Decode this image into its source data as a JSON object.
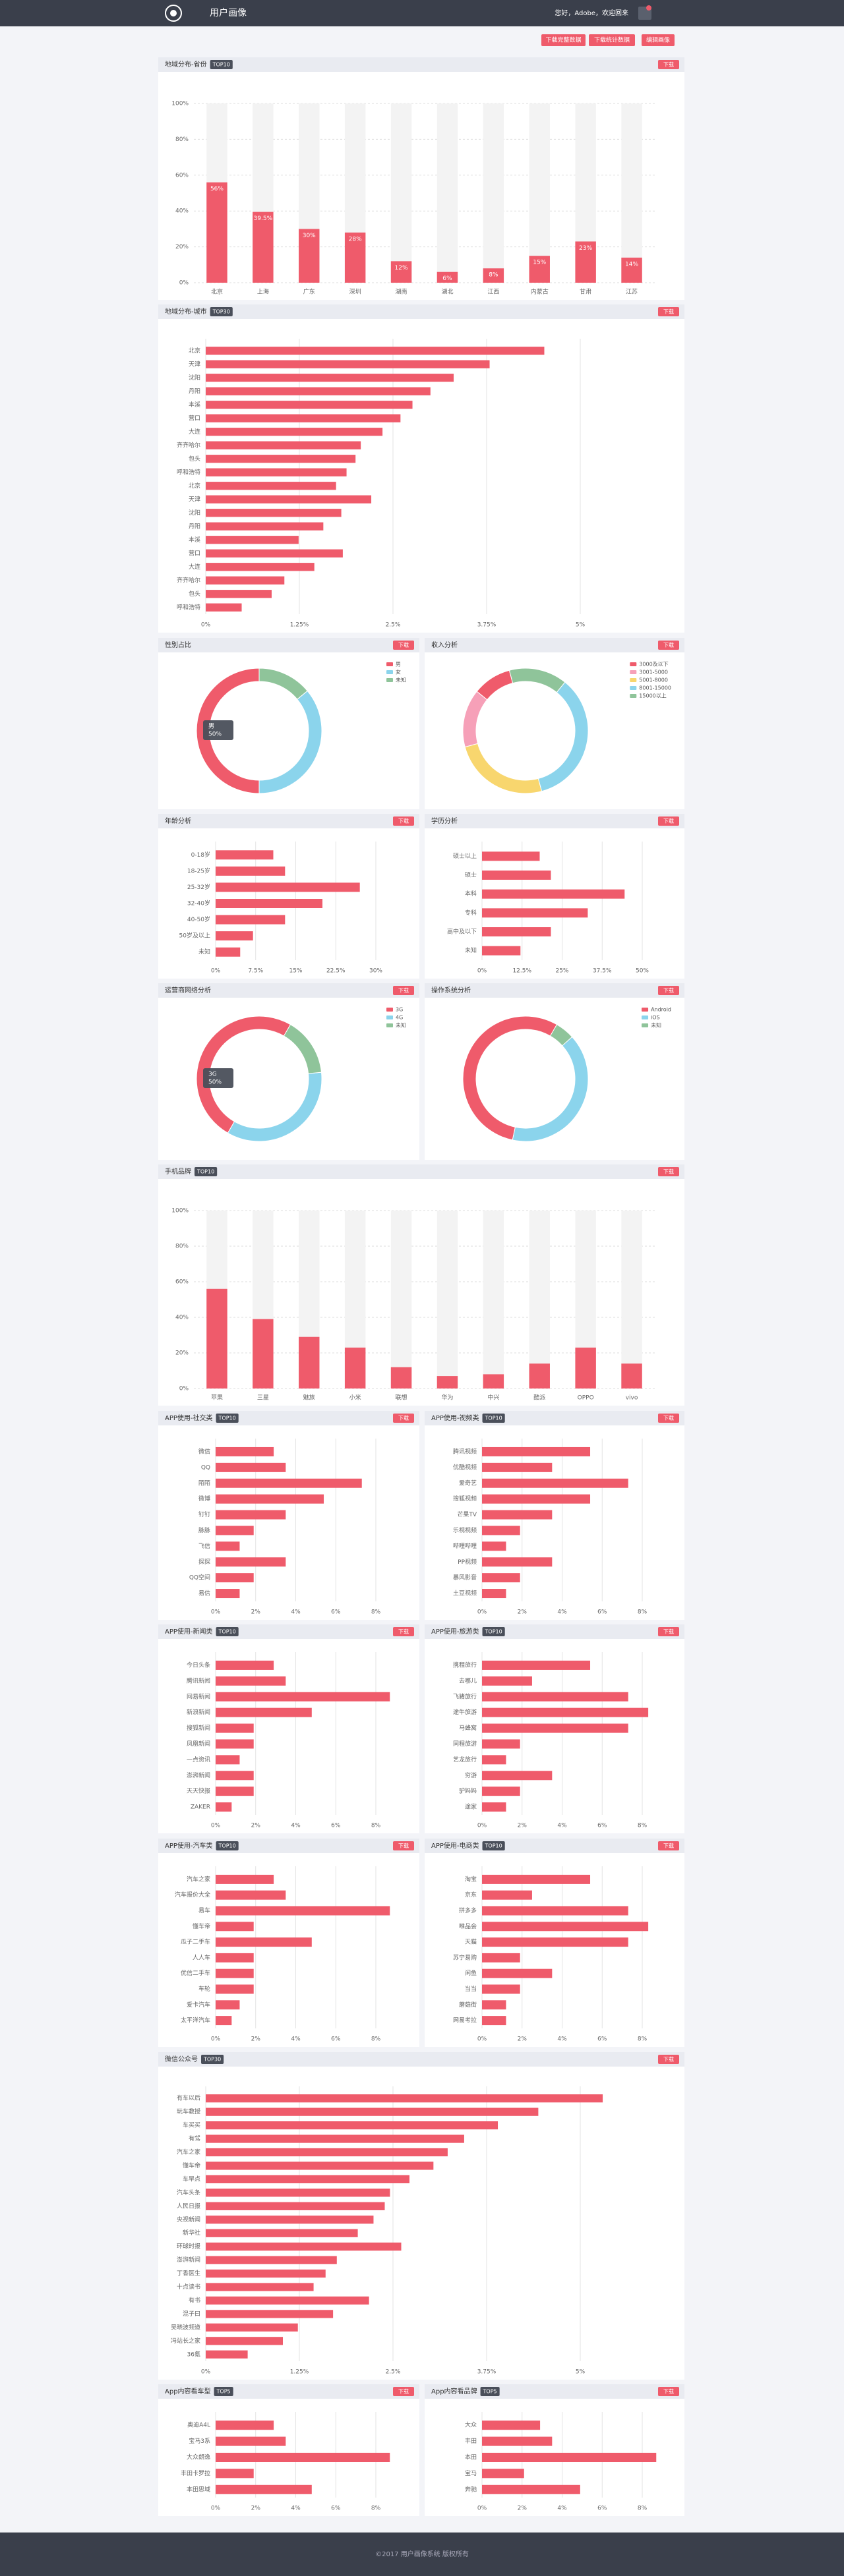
{
  "header": {
    "title": "用户画像",
    "greeting": "您好，Adobe，欢迎回来"
  },
  "buttons": [
    "下载完整数据",
    "下载统计数据",
    "编辑画像"
  ],
  "download": "下载",
  "footer": "©2017 用户画像系统 版权所有",
  "chart_data": [
    {
      "type": "bar",
      "title": "地域分布-省份",
      "badge": "TOP10",
      "categories": [
        "北京",
        "上海",
        "广东",
        "深圳",
        "湖南",
        "湖北",
        "江西",
        "内蒙古",
        "甘肃",
        "江苏"
      ],
      "values": [
        56,
        39.5,
        30,
        28,
        12,
        6,
        8,
        15,
        23,
        14
      ],
      "value_labels": [
        "56%",
        "39.5%",
        "30%",
        "28%",
        "12%",
        "6%",
        "8%",
        "15%",
        "23%",
        "14%"
      ],
      "ylim": [
        0,
        100
      ],
      "yticks": [
        {
          "value": 0,
          "label": "0%"
        },
        {
          "value": 20,
          "label": "20%"
        },
        {
          "value": 40,
          "label": "40%"
        },
        {
          "value": 60,
          "label": "60%"
        },
        {
          "value": 80,
          "label": "80%"
        },
        {
          "value": 100,
          "label": "100%"
        }
      ],
      "color": "#ef5b6b",
      "grid": true
    },
    {
      "type": "bar",
      "horizontal": true,
      "title": "地域分布-城市",
      "badge": "TOP30",
      "categories": [
        "北京",
        "天津",
        "沈阳",
        "丹阳",
        "本溪",
        "营口",
        "大连",
        "齐齐哈尔",
        "包头",
        "呼和浩特",
        "北京",
        "天津",
        "沈阳",
        "丹阳",
        "本溪",
        "营口",
        "大连",
        "齐齐哈尔",
        "包头",
        "呼和浩特"
      ],
      "values": [
        4.52,
        3.79,
        3.31,
        3.0,
        2.76,
        2.6,
        2.36,
        2.07,
        2.0,
        1.88,
        1.74,
        2.21,
        1.81,
        1.57,
        1.24,
        1.83,
        1.45,
        1.05,
        0.88,
        0.48
      ],
      "xlim": [
        0,
        5
      ],
      "xticks": [
        {
          "value": 0,
          "label": "0%"
        },
        {
          "value": 1.25,
          "label": "1.25%"
        },
        {
          "value": 2.5,
          "label": "2.5%"
        },
        {
          "value": 3.75,
          "label": "3.75%"
        },
        {
          "value": 5,
          "label": "5%"
        }
      ],
      "color": "#ef5b6b",
      "grid": true
    },
    {
      "type": "pie",
      "donut": true,
      "title": "性别占比",
      "categories": [
        "男",
        "女",
        "未知"
      ],
      "values": [
        50,
        36,
        14
      ],
      "colors": [
        "#ef5b6b",
        "#8bd4ec",
        "#8fc49a"
      ],
      "legend": "top-right",
      "tooltip": {
        "title": "男",
        "text": "50%"
      }
    },
    {
      "type": "pie",
      "donut": true,
      "title": "收入分析",
      "categories": [
        "3000及以下",
        "3001-5000",
        "5001-8000",
        "8001-15000",
        "15000以上"
      ],
      "values": [
        10,
        15,
        25,
        35,
        15
      ],
      "colors": [
        "#ef5b6b",
        "#f6a0b8",
        "#f8d66e",
        "#8bd4ec",
        "#8fc49a"
      ],
      "legend": "top-right"
    },
    {
      "type": "bar",
      "horizontal": true,
      "title": "年龄分析",
      "categories": [
        "0-18岁",
        "18-25岁",
        "25-32岁",
        "32-40岁",
        "40-50岁",
        "50岁及以上",
        "未知"
      ],
      "values": [
        10.8,
        13,
        27,
        20,
        13,
        7,
        4.6
      ],
      "xlim": [
        0,
        30
      ],
      "xticks": [
        {
          "value": 0,
          "label": "0%"
        },
        {
          "value": 7.5,
          "label": "7.5%"
        },
        {
          "value": 15,
          "label": "15%"
        },
        {
          "value": 22.5,
          "label": "22.5%"
        },
        {
          "value": 30,
          "label": "30%"
        }
      ],
      "color": "#ef5b6b",
      "grid": true
    },
    {
      "type": "bar",
      "horizontal": true,
      "title": "学历分析",
      "categories": [
        "硕士以上",
        "硕士",
        "本科",
        "专科",
        "高中及以下",
        "未知"
      ],
      "values": [
        18,
        21.5,
        44.5,
        33,
        21.5,
        12
      ],
      "xlim": [
        0,
        50
      ],
      "xticks": [
        {
          "value": 0,
          "label": "0%"
        },
        {
          "value": 12.5,
          "label": "12.5%"
        },
        {
          "value": 25,
          "label": "25%"
        },
        {
          "value": 37.5,
          "label": "37.5%"
        },
        {
          "value": 50,
          "label": "50%"
        }
      ],
      "color": "#ef5b6b",
      "grid": true
    },
    {
      "type": "pie",
      "donut": true,
      "title": "运营商网络分析",
      "categories": [
        "3G",
        "4G",
        "未知"
      ],
      "values": [
        50,
        35,
        15
      ],
      "colors": [
        "#ef5b6b",
        "#8bd4ec",
        "#8fc49a"
      ],
      "legend": "top-right",
      "tooltip": {
        "title": "3G",
        "text": "50%"
      }
    },
    {
      "type": "pie",
      "donut": true,
      "title": "操作系统分析",
      "categories": [
        "Android",
        "iOS",
        "未知"
      ],
      "values": [
        55,
        40,
        5
      ],
      "colors": [
        "#ef5b6b",
        "#8bd4ec",
        "#8fc49a"
      ],
      "legend": "top-right"
    },
    {
      "type": "bar",
      "title": "手机品牌",
      "badge": "TOP10",
      "categories": [
        "苹果",
        "三星",
        "魅族",
        "小米",
        "联想",
        "华为",
        "中兴",
        "酷派",
        "OPPO",
        "vivo"
      ],
      "values": [
        56,
        39,
        29,
        23,
        12,
        7,
        8,
        14,
        23,
        14
      ],
      "ylim": [
        0,
        100
      ],
      "yticks": [
        {
          "value": 0,
          "label": "0%"
        },
        {
          "value": 20,
          "label": "20%"
        },
        {
          "value": 40,
          "label": "40%"
        },
        {
          "value": 60,
          "label": "60%"
        },
        {
          "value": 80,
          "label": "80%"
        },
        {
          "value": 100,
          "label": "100%"
        }
      ],
      "color": "#ef5b6b",
      "grid": true
    },
    {
      "type": "bar",
      "horizontal": true,
      "title": "APP使用-社交类",
      "badge": "TOP10",
      "categories": [
        "微信",
        "QQ",
        "陌陌",
        "微博",
        "钉钉",
        "脉脉",
        "飞信",
        "探探",
        "QQ空间",
        "易信"
      ],
      "values": [
        2.9,
        3.5,
        7.3,
        5.4,
        3.5,
        1.9,
        1.2,
        3.5,
        1.9,
        1.2
      ],
      "xlim": [
        0,
        8
      ],
      "xticks": [
        {
          "value": 0,
          "label": "0%"
        },
        {
          "value": 2,
          "label": "2%"
        },
        {
          "value": 4,
          "label": "4%"
        },
        {
          "value": 6,
          "label": "6%"
        },
        {
          "value": 8,
          "label": "8%"
        }
      ],
      "color": "#ef5b6b",
      "grid": true
    },
    {
      "type": "bar",
      "horizontal": true,
      "title": "APP使用-视频类",
      "badge": "TOP10",
      "categories": [
        "腾讯视频",
        "优酷视频",
        "爱奇艺",
        "搜狐视频",
        "芒果TV",
        "乐视视频",
        "哔哩哔哩",
        "PP视频",
        "暴风影音",
        "土豆视频"
      ],
      "values": [
        5.4,
        3.5,
        7.3,
        5.4,
        3.5,
        1.9,
        1.2,
        3.5,
        1.9,
        1.2
      ],
      "xlim": [
        0,
        8
      ],
      "xticks": [
        {
          "value": 0,
          "label": "0%"
        },
        {
          "value": 2,
          "label": "2%"
        },
        {
          "value": 4,
          "label": "4%"
        },
        {
          "value": 6,
          "label": "6%"
        },
        {
          "value": 8,
          "label": "8%"
        }
      ],
      "color": "#ef5b6b",
      "grid": true
    },
    {
      "type": "bar",
      "horizontal": true,
      "title": "APP使用-新闻类",
      "badge": "TOP10",
      "categories": [
        "今日头条",
        "腾讯新闻",
        "网易新闻",
        "新浪新闻",
        "搜狐新闻",
        "凤凰新闻",
        "一点资讯",
        "澎湃新闻",
        "天天快报",
        "ZAKER"
      ],
      "values": [
        2.9,
        3.5,
        8.7,
        4.8,
        1.9,
        1.9,
        1.2,
        1.9,
        1.9,
        0.8
      ],
      "xlim": [
        0,
        8
      ],
      "xticks": [
        {
          "value": 0,
          "label": "0%"
        },
        {
          "value": 2,
          "label": "2%"
        },
        {
          "value": 4,
          "label": "4%"
        },
        {
          "value": 6,
          "label": "6%"
        },
        {
          "value": 8,
          "label": "8%"
        }
      ],
      "color": "#ef5b6b",
      "grid": true
    },
    {
      "type": "bar",
      "horizontal": true,
      "title": "APP使用-旅游类",
      "badge": "TOP10",
      "categories": [
        "携程旅行",
        "去哪儿",
        "飞猪旅行",
        "途牛旅游",
        "马蜂窝",
        "同程旅游",
        "艺龙旅行",
        "穷游",
        "驴妈妈",
        "途家"
      ],
      "values": [
        5.4,
        2.5,
        7.3,
        8.3,
        7.3,
        1.9,
        1.2,
        3.5,
        1.9,
        1.2
      ],
      "xlim": [
        0,
        8
      ],
      "xticks": [
        {
          "value": 0,
          "label": "0%"
        },
        {
          "value": 2,
          "label": "2%"
        },
        {
          "value": 4,
          "label": "4%"
        },
        {
          "value": 6,
          "label": "6%"
        },
        {
          "value": 8,
          "label": "8%"
        }
      ],
      "color": "#ef5b6b",
      "grid": true
    },
    {
      "type": "bar",
      "horizontal": true,
      "title": "APP使用-汽车类",
      "badge": "TOP10",
      "categories": [
        "汽车之家",
        "汽车报价大全",
        "易车",
        "懂车帝",
        "瓜子二手车",
        "人人车",
        "优信二手车",
        "车轮",
        "爱卡汽车",
        "太平洋汽车"
      ],
      "values": [
        2.9,
        3.5,
        8.7,
        1.9,
        4.8,
        1.9,
        1.9,
        1.9,
        1.2,
        0.8
      ],
      "xlim": [
        0,
        8
      ],
      "xticks": [
        {
          "value": 0,
          "label": "0%"
        },
        {
          "value": 2,
          "label": "2%"
        },
        {
          "value": 4,
          "label": "4%"
        },
        {
          "value": 6,
          "label": "6%"
        },
        {
          "value": 8,
          "label": "8%"
        }
      ],
      "color": "#ef5b6b",
      "grid": true
    },
    {
      "type": "bar",
      "horizontal": true,
      "title": "APP使用-电商类",
      "badge": "TOP10",
      "categories": [
        "淘宝",
        "京东",
        "拼多多",
        "唯品会",
        "天猫",
        "苏宁易购",
        "闲鱼",
        "当当",
        "蘑菇街",
        "网易考拉"
      ],
      "values": [
        5.4,
        2.5,
        7.3,
        8.3,
        7.3,
        1.9,
        3.5,
        1.9,
        1.2,
        1.2
      ],
      "xlim": [
        0,
        8
      ],
      "xticks": [
        {
          "value": 0,
          "label": "0%"
        },
        {
          "value": 2,
          "label": "2%"
        },
        {
          "value": 4,
          "label": "4%"
        },
        {
          "value": 6,
          "label": "6%"
        },
        {
          "value": 8,
          "label": "8%"
        }
      ],
      "color": "#ef5b6b",
      "grid": true
    },
    {
      "type": "bar",
      "horizontal": true,
      "title": "微信公众号",
      "badge": "TOP30",
      "categories": [
        "有车以后",
        "玩车教授",
        "车买买",
        "有驾",
        "汽车之家",
        "懂车帝",
        "车早点",
        "汽车头条",
        "人民日报",
        "央视新闻",
        "新华社",
        "环球时报",
        "澎湃新闻",
        "丁香医生",
        "十点读书",
        "有书",
        "混子曰",
        "吴晓波频道",
        "冯站长之家",
        "36氪"
      ],
      "values": [
        5.3,
        4.44,
        3.9,
        3.45,
        3.23,
        3.04,
        2.72,
        2.46,
        2.39,
        2.24,
        2.03,
        2.61,
        1.75,
        1.6,
        1.44,
        2.18,
        1.7,
        1.23,
        1.03,
        0.56
      ],
      "xlim": [
        0,
        5
      ],
      "xticks": [
        {
          "value": 0,
          "label": "0%"
        },
        {
          "value": 1.25,
          "label": "1.25%"
        },
        {
          "value": 2.5,
          "label": "2.5%"
        },
        {
          "value": 3.75,
          "label": "3.75%"
        },
        {
          "value": 5,
          "label": "5%"
        }
      ],
      "color": "#ef5b6b",
      "grid": true
    },
    {
      "type": "bar",
      "horizontal": true,
      "title": "App内容看车型",
      "badge": "TOP5",
      "categories": [
        "奥迪A4L",
        "宝马3系",
        "大众朗逸",
        "丰田卡罗拉",
        "本田思域"
      ],
      "values": [
        2.9,
        3.5,
        8.7,
        1.9,
        4.8
      ],
      "xlim": [
        0,
        8
      ],
      "xticks": [
        {
          "value": 0,
          "label": "0%"
        },
        {
          "value": 2,
          "label": "2%"
        },
        {
          "value": 4,
          "label": "4%"
        },
        {
          "value": 6,
          "label": "6%"
        },
        {
          "value": 8,
          "label": "8%"
        }
      ],
      "color": "#ef5b6b",
      "grid": true
    },
    {
      "type": "bar",
      "horizontal": true,
      "title": "App内容看品牌",
      "badge": "TOP5",
      "categories": [
        "大众",
        "丰田",
        "本田",
        "宝马",
        "奔驰"
      ],
      "values": [
        2.9,
        3.5,
        8.7,
        2.1,
        4.9
      ],
      "xlim": [
        0,
        8
      ],
      "xticks": [
        {
          "value": 0,
          "label": "0%"
        },
        {
          "value": 2,
          "label": "2%"
        },
        {
          "value": 4,
          "label": "4%"
        },
        {
          "value": 6,
          "label": "6%"
        },
        {
          "value": 8,
          "label": "8%"
        }
      ],
      "color": "#ef5b6b",
      "grid": true
    }
  ]
}
